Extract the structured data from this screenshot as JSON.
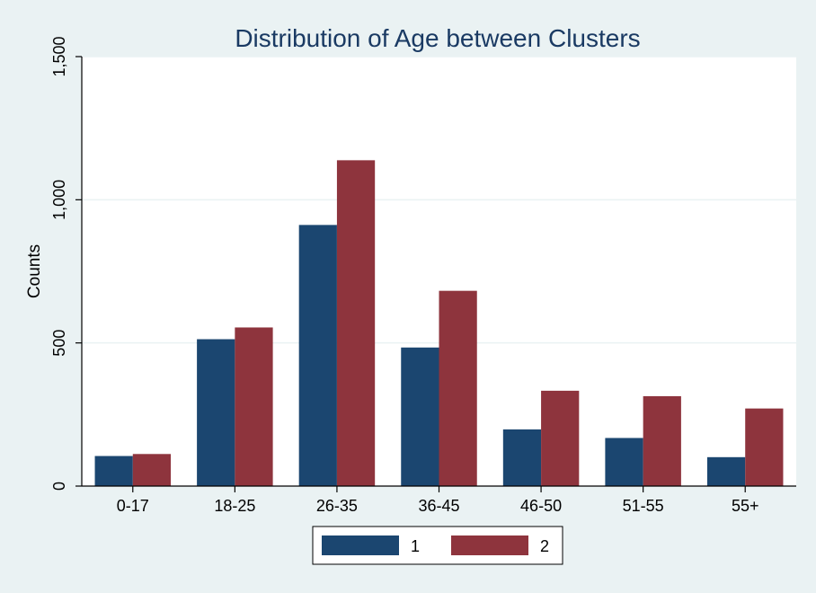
{
  "chart_data": {
    "type": "bar",
    "title": "Distribution of Age between Clusters",
    "xlabel": "",
    "ylabel": "Counts",
    "categories": [
      "0-17",
      "18-25",
      "26-35",
      "36-45",
      "46-50",
      "51-55",
      "55+"
    ],
    "series": [
      {
        "name": "1",
        "color": "#1b4670",
        "values": [
          105,
          513,
          912,
          484,
          198,
          168,
          101
        ]
      },
      {
        "name": "2",
        "color": "#8e343d",
        "values": [
          112,
          554,
          1138,
          682,
          333,
          314,
          271
        ]
      }
    ],
    "ylim": [
      0,
      1500
    ],
    "yticks": [
      0,
      500,
      1000,
      1500
    ],
    "ytick_labels": [
      "0",
      "500",
      "1,000",
      "1,500"
    ],
    "grid": true,
    "legend_position": "bottom"
  },
  "colors": {
    "background": "#eaf2f3",
    "plot_area": "#ffffff",
    "gridline": "#eaf2f3",
    "title": "#1a3a63"
  }
}
